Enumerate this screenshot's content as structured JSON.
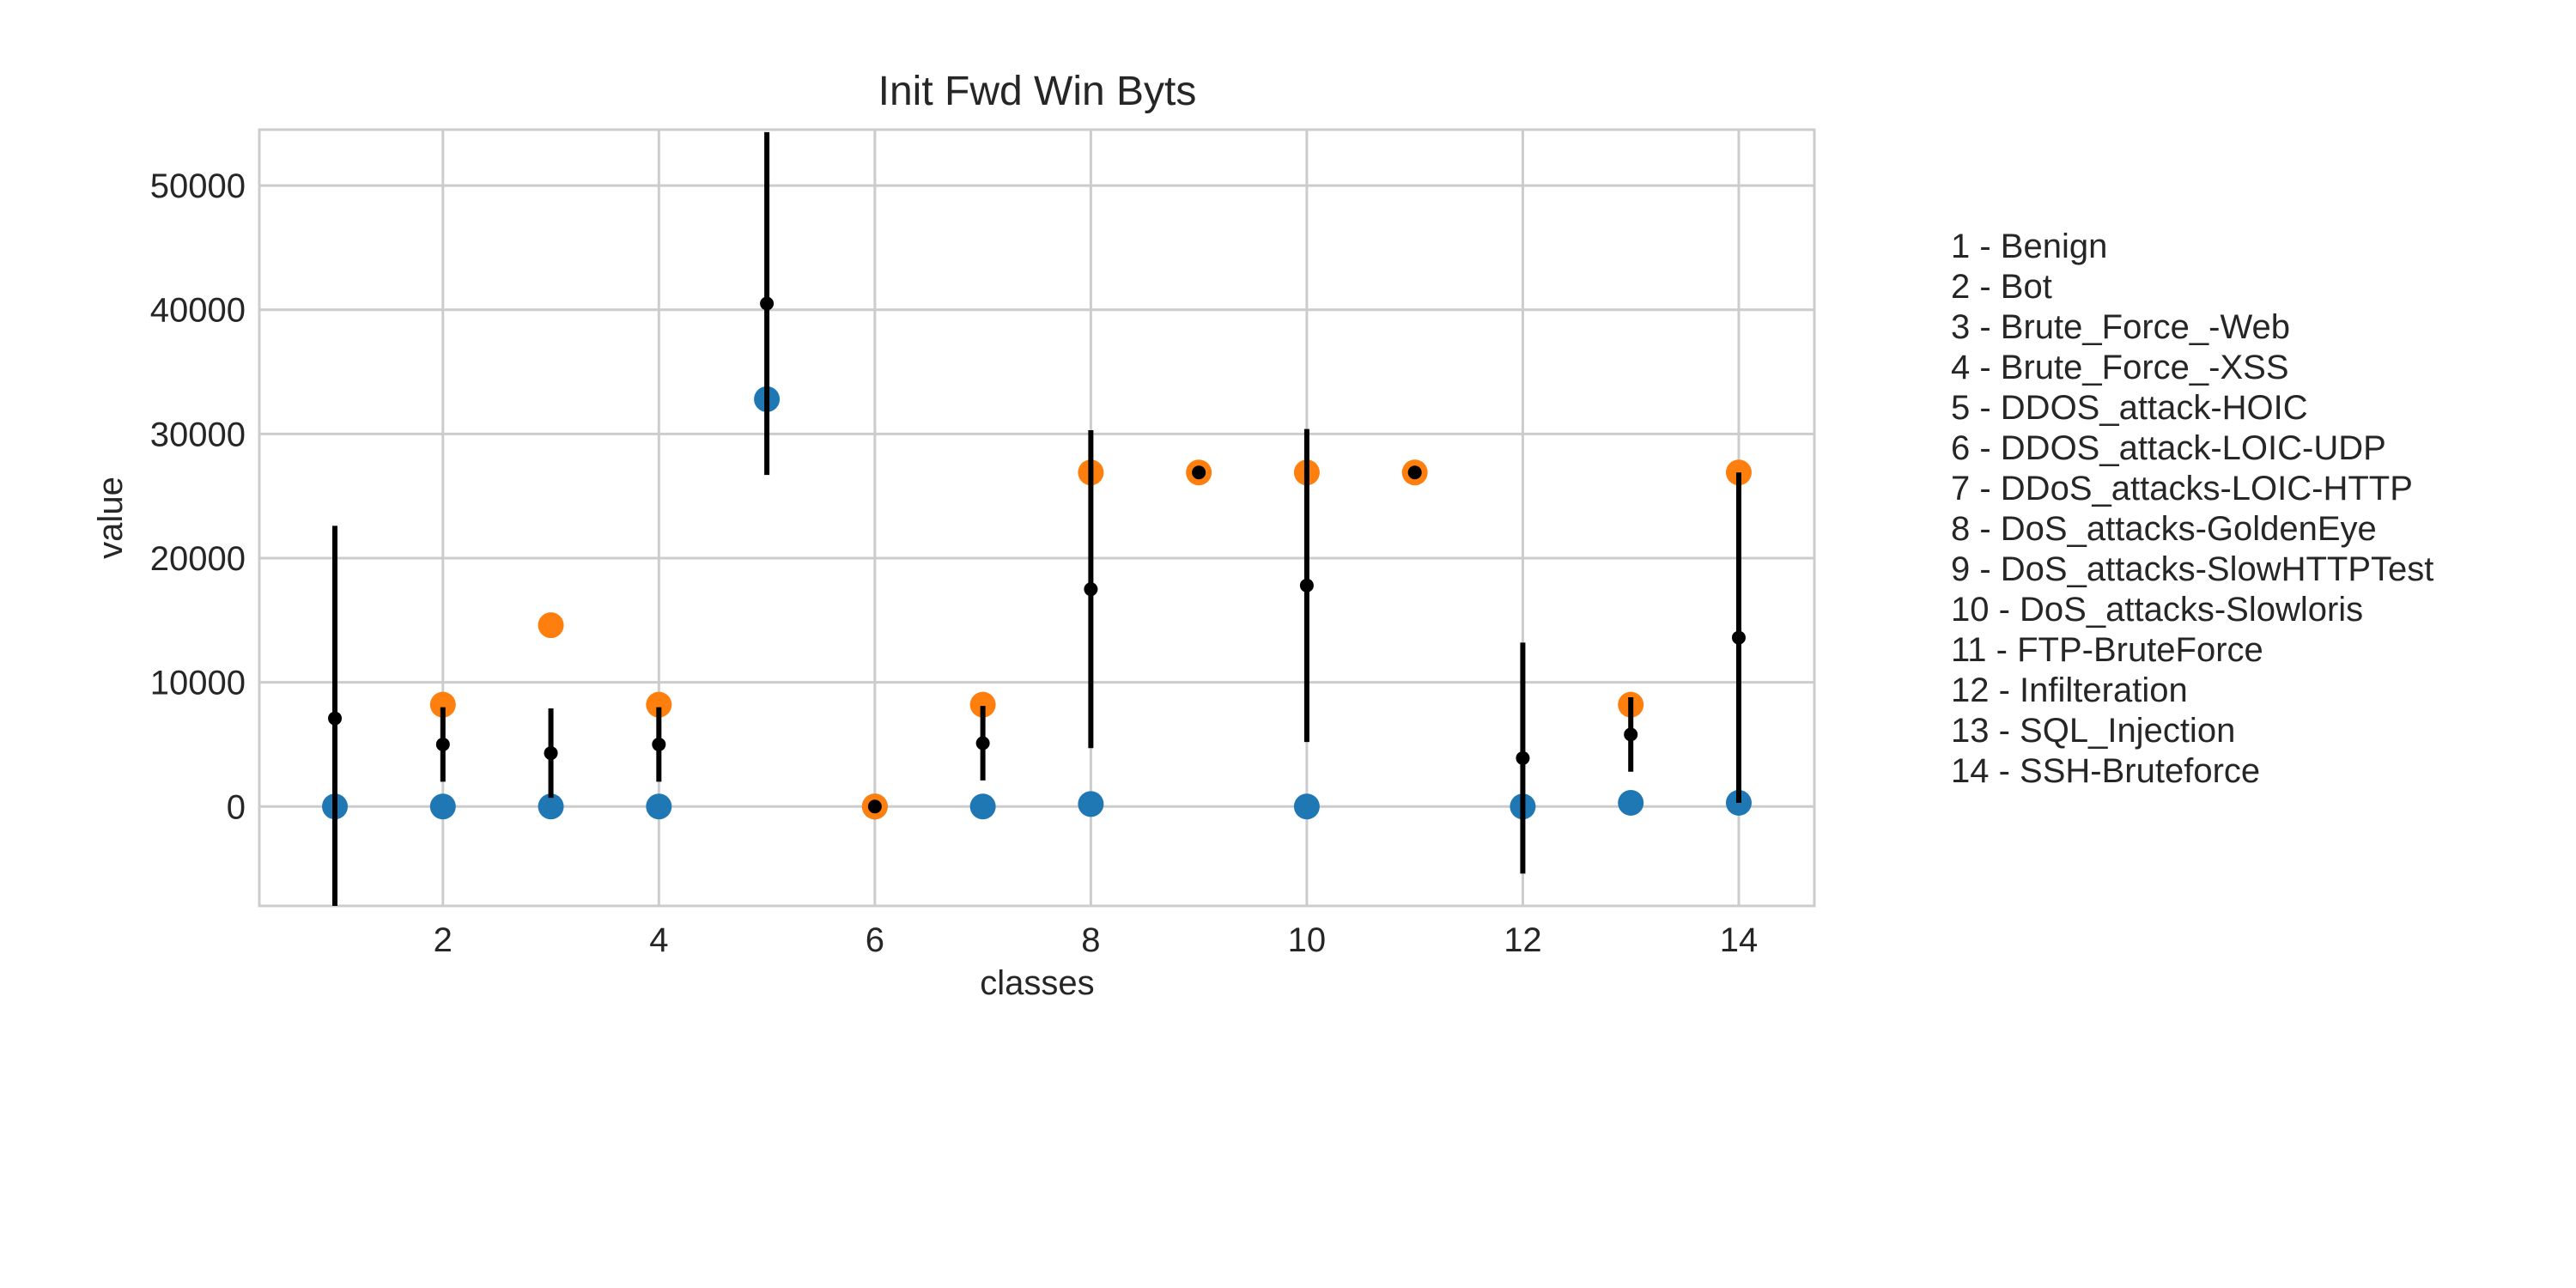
{
  "chart_data": {
    "type": "scatter",
    "title": "Init Fwd Win Byts",
    "xlabel": "classes",
    "ylabel": "value",
    "xlim": [
      0.3,
      14.7
    ],
    "ylim": [
      -8000,
      54500
    ],
    "xticks": [
      2,
      4,
      6,
      8,
      10,
      12,
      14
    ],
    "yticks": [
      0,
      10000,
      20000,
      30000,
      40000,
      50000
    ],
    "grid": true,
    "legend_position": "right",
    "series_colors": {
      "min": "#1f77b4",
      "max": "#ff7f0e",
      "mean": "#000000"
    },
    "min_values": [
      0,
      0,
      0,
      0,
      32800,
      0,
      0,
      200,
      null,
      0,
      null,
      0,
      300,
      300
    ],
    "max_values": [
      null,
      8200,
      14600,
      8200,
      null,
      0,
      8200,
      26900,
      26900,
      26900,
      26900,
      null,
      8200,
      26900
    ],
    "mean_values": [
      7100,
      5000,
      4300,
      5000,
      40500,
      0,
      5100,
      17500,
      26900,
      17800,
      26900,
      3900,
      5800,
      13600
    ],
    "std_values": [
      15500,
      3000,
      3600,
      3000,
      13800,
      0,
      3000,
      12800,
      0,
      12600,
      0,
      9300,
      3000,
      13300
    ],
    "legend": [
      "1 - Benign",
      "2 - Bot",
      "3 - Brute_Force_-Web",
      "4 - Brute_Force_-XSS",
      "5 - DDOS_attack-HOIC",
      "6 - DDOS_attack-LOIC-UDP",
      "7 - DDoS_attacks-LOIC-HTTP",
      "8 - DoS_attacks-GoldenEye",
      "9 - DoS_attacks-SlowHTTPTest",
      "10 - DoS_attacks-Slowloris",
      "11 - FTP-BruteForce",
      "12 - Infilteration",
      "13 - SQL_Injection",
      "14 - SSH-Bruteforce"
    ]
  }
}
